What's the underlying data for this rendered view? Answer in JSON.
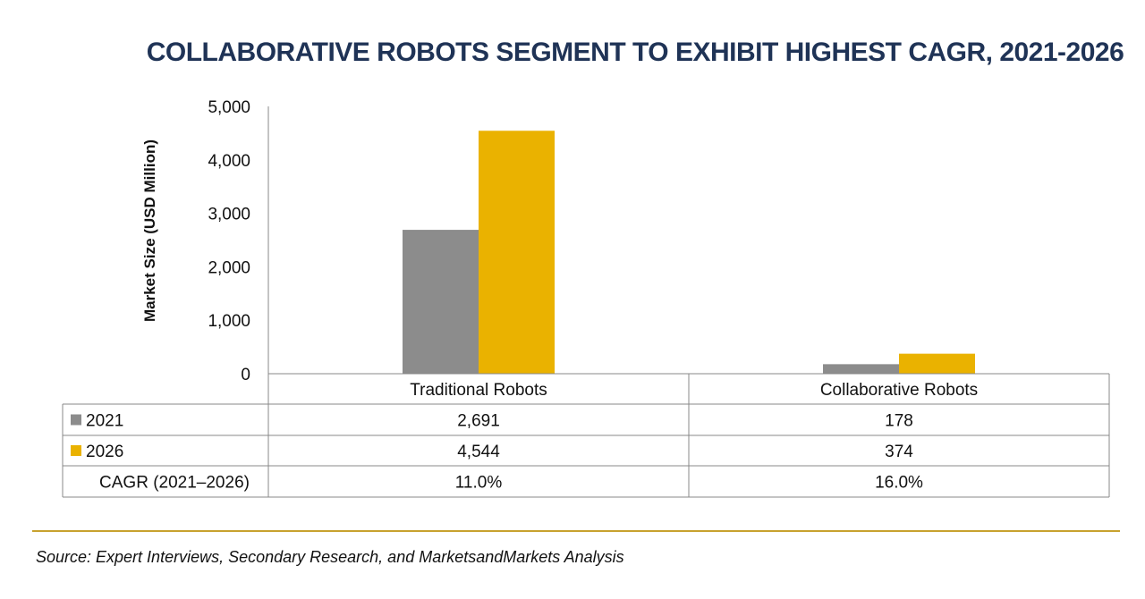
{
  "chart_data": {
    "type": "bar",
    "title": "COLLABORATIVE ROBOTS SEGMENT TO EXHIBIT HIGHEST CAGR, 2021-2026",
    "ylabel": "Market Size (USD Million)",
    "xlabel": "",
    "ylim": [
      0,
      5000
    ],
    "yticks": [
      0,
      1000,
      2000,
      3000,
      4000,
      5000
    ],
    "ytick_labels": [
      "0",
      "1,000",
      "2,000",
      "3,000",
      "4,000",
      "5,000"
    ],
    "categories": [
      "Traditional Robots",
      "Collaborative Robots"
    ],
    "series": [
      {
        "name": "2021",
        "values": [
          2691,
          178
        ],
        "labels": [
          "2,691",
          "178"
        ],
        "color": "#8c8c8c"
      },
      {
        "name": "2026",
        "values": [
          4544,
          374
        ],
        "labels": [
          "4,544",
          "374"
        ],
        "color": "#eab200"
      }
    ],
    "table": {
      "cagr_label": "CAGR (2021–2026)",
      "cagr_values": [
        "11.0%",
        "16.0%"
      ]
    }
  },
  "source": "Source: Expert Interviews, Secondary Research, and MarketsandMarkets Analysis"
}
